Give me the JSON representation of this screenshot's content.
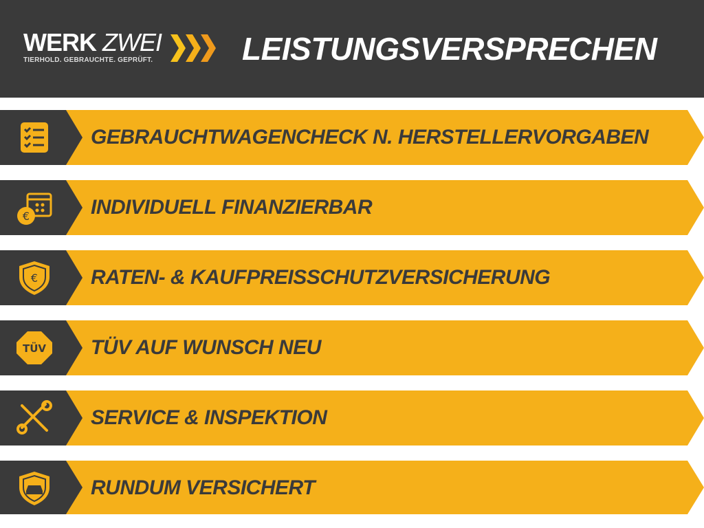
{
  "header": {
    "logo": {
      "word1": "WERK",
      "word2": "ZWEI",
      "tagline": "TIERHOLD. GEBRAUCHTE. GEPRÜFT."
    },
    "title": "LEISTUNGSVERSPRECHEN"
  },
  "colors": {
    "dark": "#3a3a3a",
    "accent": "#f5b01a"
  },
  "items": [
    {
      "label": "GEBRAUCHTWAGENCHECK N. HERSTELLERVORGABEN",
      "icon": "checklist-icon"
    },
    {
      "label": "INDIVIDUELL FINANZIERBAR",
      "icon": "calendar-euro-icon"
    },
    {
      "label": "RATEN- & KAUFPREISSCHUTZVERSICHERUNG",
      "icon": "shield-euro-icon"
    },
    {
      "label": "TÜV AUF WUNSCH NEU",
      "icon": "tuv-badge-icon",
      "icon_text": "TÜV"
    },
    {
      "label": "SERVICE & INSPEKTION",
      "icon": "tools-icon"
    },
    {
      "label": "RUNDUM VERSICHERT",
      "icon": "shield-car-icon"
    }
  ]
}
